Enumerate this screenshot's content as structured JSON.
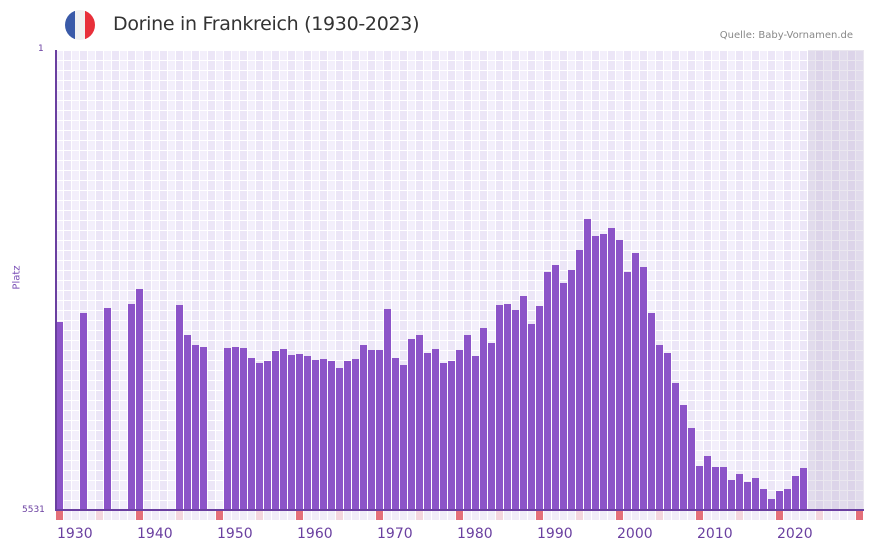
{
  "header": {
    "title": "Dorine in Frankreich (1930-2023)",
    "source": "Quelle: Baby-Vornamen.de",
    "flag_icon": "france-flag-icon",
    "flag_colors": [
      "#3a5aa8",
      "#f1f1f1",
      "#e8303a"
    ]
  },
  "axis": {
    "y_top_label": "1",
    "y_bottom_label": "5531",
    "y_title": "Platz",
    "x_ticks": [
      "1930",
      "1940",
      "1950",
      "1960",
      "1970",
      "1980",
      "1990",
      "2000",
      "2010",
      "2020"
    ]
  },
  "colors": {
    "bar": "#8c54c8",
    "axis": "#6a3fa0",
    "grid_cell_a": "#f3effb",
    "grid_cell_b": "#ece6f7",
    "decade_marker": "#e4707a",
    "half_decade_marker": "#f4d6de",
    "minor_marker": "#f1edf8",
    "future_shade": "#e3dfec"
  },
  "chart_data": {
    "type": "bar",
    "title": "Dorine in Frankreich (1930-2023)",
    "xlabel": "",
    "ylabel": "Platz",
    "ylim": [
      5531,
      1
    ],
    "y_inverted": true,
    "x_range": [
      1930,
      2030
    ],
    "future_shade_from": 2024,
    "grid": true,
    "legend": null,
    "x": [
      1930,
      1931,
      1932,
      1933,
      1934,
      1935,
      1936,
      1937,
      1938,
      1939,
      1940,
      1941,
      1942,
      1943,
      1944,
      1945,
      1946,
      1947,
      1948,
      1949,
      1950,
      1951,
      1952,
      1953,
      1954,
      1955,
      1956,
      1957,
      1958,
      1959,
      1960,
      1961,
      1962,
      1963,
      1964,
      1965,
      1966,
      1967,
      1968,
      1969,
      1970,
      1971,
      1972,
      1973,
      1974,
      1975,
      1976,
      1977,
      1978,
      1979,
      1980,
      1981,
      1982,
      1983,
      1984,
      1985,
      1986,
      1987,
      1988,
      1989,
      1990,
      1991,
      1992,
      1993,
      1994,
      1995,
      1996,
      1997,
      1998,
      1999,
      2000,
      2001,
      2002,
      2003,
      2004,
      2005,
      2006,
      2007,
      2008,
      2009,
      2010,
      2011,
      2012,
      2013,
      2014,
      2015,
      2016,
      2017,
      2018,
      2019,
      2020,
      2021,
      2022,
      2023
    ],
    "values": [
      3270,
      null,
      null,
      3160,
      null,
      null,
      3100,
      null,
      null,
      3050,
      2880,
      null,
      null,
      null,
      null,
      3070,
      3430,
      3550,
      3570,
      null,
      null,
      3580,
      3570,
      3580,
      3700,
      3760,
      3740,
      3620,
      3600,
      3670,
      3650,
      3680,
      3730,
      3720,
      3740,
      3820,
      3740,
      3720,
      3550,
      3610,
      3610,
      3120,
      3700,
      3790,
      3480,
      3430,
      3640,
      3600,
      3760,
      3740,
      3610,
      3430,
      3680,
      3340,
      3520,
      3070,
      3050,
      3130,
      2960,
      3300,
      3080,
      2670,
      2590,
      2800,
      2650,
      2400,
      2030,
      2240,
      2210,
      2140,
      2280,
      2670,
      2440,
      2610,
      3160,
      3550,
      3640,
      4000,
      4270,
      4540,
      5000,
      4880,
      5010,
      5010,
      5170,
      5100,
      5190,
      5150,
      5280,
      5400,
      5300,
      5280,
      5120,
      5030
    ]
  }
}
